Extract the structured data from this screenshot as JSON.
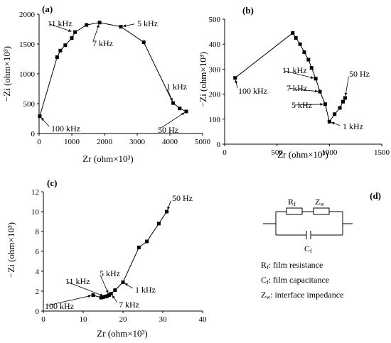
{
  "chart_data": [
    {
      "type": "line",
      "panel_label": "(a)",
      "xlabel": "Zr (ohm×10³)",
      "ylabel": "−Zi (ohm×10³)",
      "xlim": [
        0,
        5000
      ],
      "ylim": [
        0,
        2000
      ],
      "xticks": [
        "0",
        "1000",
        "2000",
        "3000",
        "4000",
        "5000"
      ],
      "yticks": [
        "0",
        "500",
        "1000",
        "1500",
        "2000"
      ],
      "x": [
        20,
        550,
        650,
        800,
        1000,
        1100,
        1450,
        1850,
        2500,
        3200,
        4100,
        4300,
        4500
      ],
      "y": [
        290,
        1280,
        1390,
        1480,
        1600,
        1700,
        1820,
        1860,
        1790,
        1530,
        510,
        420,
        370
      ],
      "annotations": [
        {
          "text": "11 kHz",
          "x": 1050,
          "y": 1700
        },
        {
          "text": "7 kHz",
          "x": 1850,
          "y": 1860
        },
        {
          "text": "5 kHz",
          "x": 2500,
          "y": 1790
        },
        {
          "text": "1 kHz",
          "x": 4100,
          "y": 510
        },
        {
          "text": "50 Hz",
          "x": 4500,
          "y": 370
        },
        {
          "text": "100 kHz",
          "x": 20,
          "y": 290
        }
      ]
    },
    {
      "type": "line",
      "panel_label": "(b)",
      "xlabel": "Zr (ohm×10³)",
      "ylabel": "−Zi (ohm×10³)",
      "xlim": [
        0,
        1500
      ],
      "ylim": [
        0,
        500
      ],
      "xticks": [
        "0",
        "500",
        "1000",
        "1500"
      ],
      "yticks": [
        "0",
        "100",
        "200",
        "300",
        "400",
        "500"
      ],
      "x": [
        100,
        650,
        680,
        720,
        760,
        800,
        830,
        870,
        910,
        960,
        1000,
        1050,
        1100,
        1130,
        1150
      ],
      "y": [
        265,
        445,
        425,
        400,
        368,
        338,
        305,
        262,
        210,
        160,
        90,
        120,
        145,
        170,
        185
      ],
      "annotations": [
        {
          "text": "100 kHz",
          "x": 100,
          "y": 265
        },
        {
          "text": "11 kHz",
          "x": 870,
          "y": 262
        },
        {
          "text": "7 kHz",
          "x": 910,
          "y": 210
        },
        {
          "text": "5 kHz",
          "x": 960,
          "y": 160
        },
        {
          "text": "1 kHz",
          "x": 1000,
          "y": 90
        },
        {
          "text": "50 Hz",
          "x": 1150,
          "y": 185
        }
      ]
    },
    {
      "type": "line",
      "panel_label": "(c)",
      "xlabel": "Zr (ohm×10³)",
      "ylabel": "−Zi (ohm×10³)",
      "xlim": [
        0,
        40
      ],
      "ylim": [
        0,
        12
      ],
      "xticks": [
        "0",
        "10",
        "20",
        "30",
        "40"
      ],
      "yticks": [
        "0",
        "2",
        "4",
        "6",
        "8",
        "10",
        "12"
      ],
      "x": [
        12.5,
        14.5,
        15,
        15.5,
        16,
        16.5,
        17,
        18,
        20,
        24,
        26,
        29,
        31
      ],
      "y": [
        1.6,
        1.35,
        1.4,
        1.45,
        1.5,
        1.6,
        1.75,
        2.1,
        2.9,
        6.4,
        7.0,
        8.8,
        10.0
      ],
      "annotations": [
        {
          "text": "100 kHz",
          "x": 12.5,
          "y": 1.6
        },
        {
          "text": "11 kHz",
          "x": 15.5,
          "y": 1.45
        },
        {
          "text": "5 kHz",
          "x": 16.5,
          "y": 1.6
        },
        {
          "text": "7 kHz",
          "x": 17,
          "y": 1.75
        },
        {
          "text": "1 kHz",
          "x": 20,
          "y": 2.9
        },
        {
          "text": "50 Hz",
          "x": 31,
          "y": 10.0
        }
      ]
    }
  ],
  "circuit": {
    "panel_label": "(d)",
    "rf_label": "R",
    "rf_sub": "f",
    "zw_label": "Z",
    "zw_sub": "w",
    "cf_label": "C",
    "cf_sub": "f",
    "legend": [
      {
        "sym": "R",
        "sub": "f",
        "text": ": film resistance"
      },
      {
        "sym": "C",
        "sub": "f",
        "text": ": film capacitance"
      },
      {
        "sym": "Z",
        "sub": "w",
        "text": ": interface impedance"
      }
    ]
  }
}
